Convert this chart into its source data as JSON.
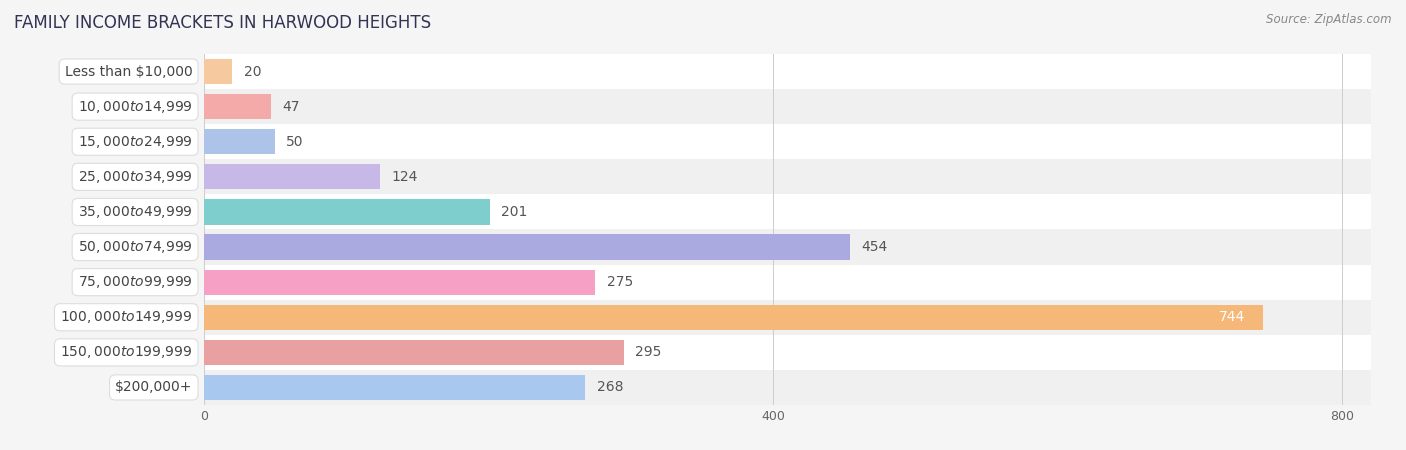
{
  "title": "FAMILY INCOME BRACKETS IN HARWOOD HEIGHTS",
  "source": "Source: ZipAtlas.com",
  "categories": [
    "Less than $10,000",
    "$10,000 to $14,999",
    "$15,000 to $24,999",
    "$25,000 to $34,999",
    "$35,000 to $49,999",
    "$50,000 to $74,999",
    "$75,000 to $99,999",
    "$100,000 to $149,999",
    "$150,000 to $199,999",
    "$200,000+"
  ],
  "values": [
    20,
    47,
    50,
    124,
    201,
    454,
    275,
    744,
    295,
    268
  ],
  "bar_colors": [
    "#f7c99e",
    "#f5aaaa",
    "#adc4e8",
    "#c8b8e8",
    "#7ecece",
    "#aaaae0",
    "#f5a0c4",
    "#f5b878",
    "#e8a0a0",
    "#a8c8f0"
  ],
  "row_colors": [
    "#ffffff",
    "#f0f0f0"
  ],
  "xlim": [
    0,
    820
  ],
  "xticks": [
    0,
    400,
    800
  ],
  "bg_color": "#f5f5f5",
  "title_fontsize": 12,
  "label_fontsize": 10,
  "value_fontsize": 10,
  "tick_fontsize": 9,
  "value_color_inside": "#ffffff",
  "value_color_outside": "#555555",
  "label_color": "#444444"
}
